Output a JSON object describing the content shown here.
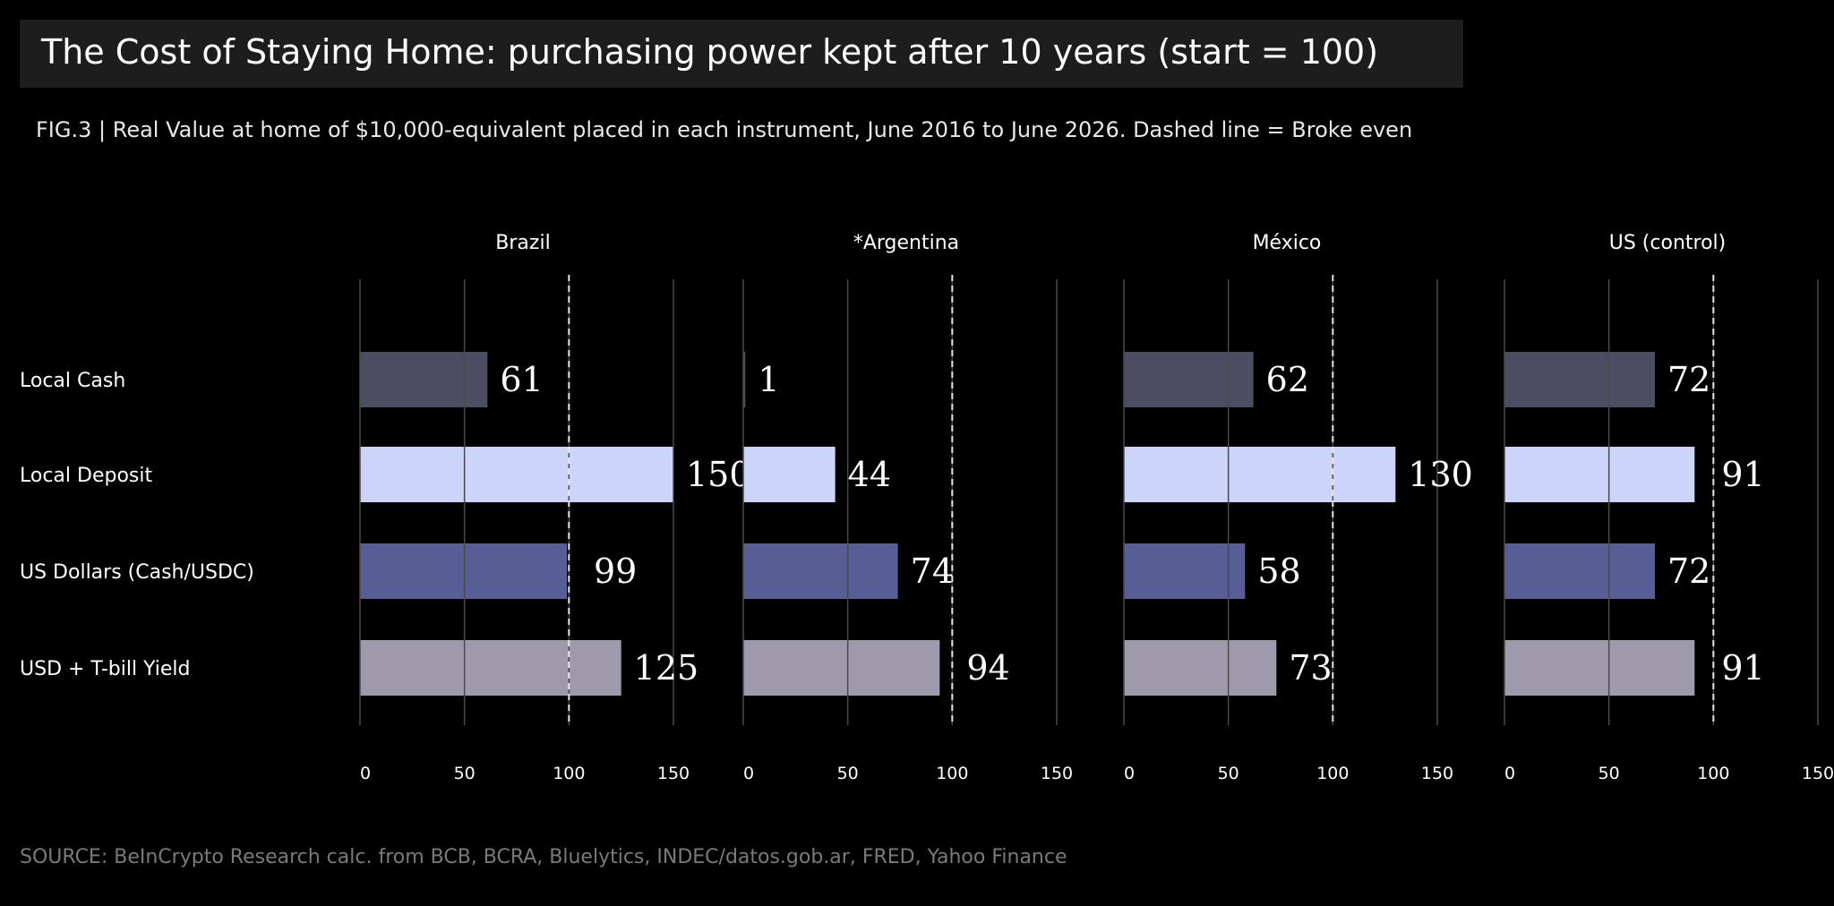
{
  "title": "The Cost of Staying Home: purchasing power kept after 10 years (start = 100)",
  "subtitle": "FIG.3 | Real Value at home of $10,000-equivalent placed in each instrument, June 2016 to June 2026. Dashed line = Broke even",
  "source": "SOURCE: BeInCrypto Research calc. from BCB, BCRA, Bluelytics, INDEC/datos.gob.ar, FRED, Yahoo Finance",
  "chart_data": {
    "type": "bar",
    "orientation": "horizontal",
    "categories": [
      "Local Cash",
      "Local Deposit",
      "US Dollars (Cash/USDC)",
      "USD + T-bill Yield"
    ],
    "xlim": [
      0,
      150
    ],
    "xticks": [
      "0",
      "50",
      "100",
      "150"
    ],
    "reference_line": 100,
    "grid": true,
    "colors": [
      "#4b4e62",
      "#cdd4fa",
      "#575e96",
      "#9e9aab"
    ],
    "panels": [
      {
        "title": "Brazil",
        "values": [
          61,
          150,
          99,
          125
        ],
        "labels": [
          "61",
          "150",
          "99",
          "125"
        ]
      },
      {
        "title": "*Argentina",
        "values": [
          1,
          44,
          74,
          94
        ],
        "labels": [
          "1",
          "44",
          "74",
          "94"
        ]
      },
      {
        "title": "México",
        "values": [
          62,
          130,
          58,
          73
        ],
        "labels": [
          "62",
          "130",
          "58",
          "73"
        ]
      },
      {
        "title": "US (control)",
        "values": [
          72,
          91,
          72,
          91
        ],
        "labels": [
          "72",
          "91",
          "72",
          "91"
        ]
      }
    ]
  }
}
